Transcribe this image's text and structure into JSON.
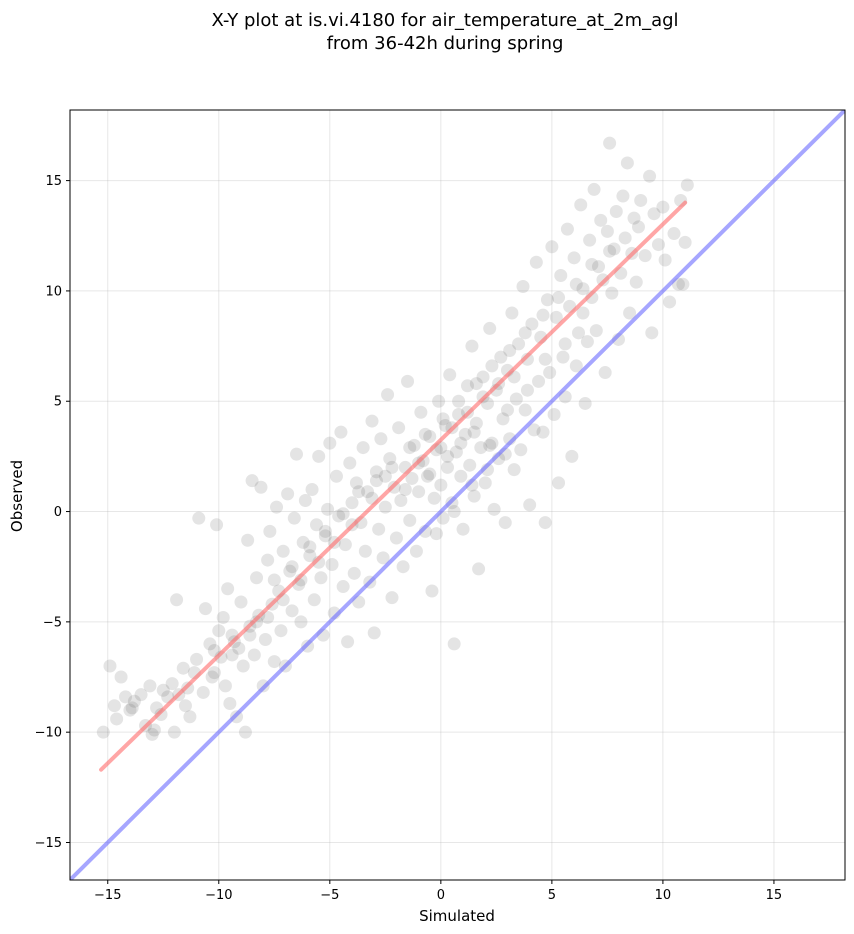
{
  "chart_data": {
    "type": "scatter",
    "title_lines": [
      "X-Y plot at is.vi.4180 for air_temperature_at_2m_agl",
      "from 36-42h during spring"
    ],
    "xlabel": "Simulated",
    "ylabel": "Observed",
    "xlim": [
      -16.7,
      18.2
    ],
    "ylim": [
      -16.7,
      18.2
    ],
    "xticks": [
      -15,
      -10,
      -5,
      0,
      5,
      10,
      15
    ],
    "yticks": [
      -15,
      -10,
      -5,
      0,
      5,
      10,
      15
    ],
    "xtick_labels": [
      "−15",
      "−10",
      "−5",
      "0",
      "5",
      "10",
      "15"
    ],
    "ytick_labels": [
      "−15",
      "−10",
      "−5",
      "0",
      "5",
      "10",
      "15"
    ],
    "grid": true,
    "point_color": "#555555",
    "fit_line": {
      "x": [
        -15.3,
        11.0
      ],
      "y": [
        -11.7,
        14.0
      ],
      "color": "#ff6b6b"
    },
    "identity_line": {
      "color": "#6b6bff"
    },
    "points": [
      [
        -15.2,
        -10.0
      ],
      [
        -14.9,
        -7.0
      ],
      [
        -14.7,
        -8.8
      ],
      [
        -14.6,
        -9.4
      ],
      [
        -14.4,
        -7.5
      ],
      [
        -14.2,
        -8.4
      ],
      [
        -14.0,
        -9.0
      ],
      [
        -13.8,
        -8.6
      ],
      [
        -13.5,
        -8.3
      ],
      [
        -13.3,
        -9.7
      ],
      [
        -13.1,
        -7.9
      ],
      [
        -13.0,
        -10.1
      ],
      [
        -12.8,
        -8.9
      ],
      [
        -12.6,
        -9.2
      ],
      [
        -12.5,
        -8.1
      ],
      [
        -12.3,
        -8.4
      ],
      [
        -12.1,
        -7.8
      ],
      [
        -12.0,
        -10.0
      ],
      [
        -11.9,
        -4.0
      ],
      [
        -11.8,
        -8.3
      ],
      [
        -11.6,
        -7.1
      ],
      [
        -11.5,
        -8.8
      ],
      [
        -11.3,
        -9.3
      ],
      [
        -11.1,
        -7.3
      ],
      [
        -11.0,
        -6.7
      ],
      [
        -10.9,
        -0.3
      ],
      [
        -10.7,
        -8.2
      ],
      [
        -10.6,
        -4.4
      ],
      [
        -10.4,
        -6.0
      ],
      [
        -10.3,
        -7.5
      ],
      [
        -10.1,
        -0.6
      ],
      [
        -10.0,
        -5.4
      ],
      [
        -9.9,
        -6.6
      ],
      [
        -9.8,
        -4.8
      ],
      [
        -9.7,
        -7.9
      ],
      [
        -9.6,
        -3.5
      ],
      [
        -9.5,
        -8.7
      ],
      [
        -9.3,
        -5.9
      ],
      [
        -9.2,
        -9.3
      ],
      [
        -9.1,
        -6.2
      ],
      [
        -9.0,
        -4.1
      ],
      [
        -8.9,
        -7.0
      ],
      [
        -8.8,
        -10.0
      ],
      [
        -8.7,
        -1.3
      ],
      [
        -8.6,
        -5.2
      ],
      [
        -8.5,
        1.4
      ],
      [
        -8.4,
        -6.5
      ],
      [
        -8.3,
        -3.0
      ],
      [
        -8.2,
        -4.7
      ],
      [
        -8.1,
        1.1
      ],
      [
        -8.0,
        -7.9
      ],
      [
        -7.9,
        -5.8
      ],
      [
        -7.8,
        -2.2
      ],
      [
        -7.7,
        -0.9
      ],
      [
        -7.6,
        -4.2
      ],
      [
        -7.5,
        -6.8
      ],
      [
        -7.4,
        0.2
      ],
      [
        -7.3,
        -3.6
      ],
      [
        -7.2,
        -5.4
      ],
      [
        -7.1,
        -1.8
      ],
      [
        -7.0,
        -7.0
      ],
      [
        -6.9,
        0.8
      ],
      [
        -6.8,
        -2.7
      ],
      [
        -6.7,
        -4.5
      ],
      [
        -6.6,
        -0.3
      ],
      [
        -6.5,
        2.6
      ],
      [
        -6.4,
        -3.3
      ],
      [
        -6.3,
        -5.0
      ],
      [
        -6.2,
        -1.4
      ],
      [
        -6.1,
        0.5
      ],
      [
        -6.0,
        -6.1
      ],
      [
        -5.9,
        -2.0
      ],
      [
        -5.8,
        1.0
      ],
      [
        -5.7,
        -4.0
      ],
      [
        -5.6,
        -0.6
      ],
      [
        -5.5,
        2.5
      ],
      [
        -5.4,
        -3.0
      ],
      [
        -5.3,
        -5.6
      ],
      [
        -5.2,
        -1.1
      ],
      [
        -5.1,
        0.1
      ],
      [
        -5.0,
        3.1
      ],
      [
        -4.9,
        -2.4
      ],
      [
        -4.8,
        -4.6
      ],
      [
        -4.7,
        1.6
      ],
      [
        -4.6,
        -0.2
      ],
      [
        -4.5,
        3.6
      ],
      [
        -4.4,
        -3.4
      ],
      [
        -4.3,
        -1.5
      ],
      [
        -4.2,
        -5.9
      ],
      [
        -4.1,
        2.2
      ],
      [
        -4.0,
        0.4
      ],
      [
        -3.9,
        -2.8
      ],
      [
        -3.8,
        1.3
      ],
      [
        -3.7,
        -4.1
      ],
      [
        -3.6,
        -0.5
      ],
      [
        -3.5,
        2.9
      ],
      [
        -3.4,
        -1.8
      ],
      [
        -3.3,
        0.9
      ],
      [
        -3.2,
        -3.2
      ],
      [
        -3.1,
        4.1
      ],
      [
        -3.0,
        -5.5
      ],
      [
        -2.9,
        1.8
      ],
      [
        -2.8,
        -0.8
      ],
      [
        -2.7,
        3.3
      ],
      [
        -2.6,
        -2.1
      ],
      [
        -2.5,
        0.2
      ],
      [
        -2.4,
        5.3
      ],
      [
        -2.3,
        2.4
      ],
      [
        -2.2,
        -3.9
      ],
      [
        -2.1,
        1.1
      ],
      [
        -2.0,
        -1.2
      ],
      [
        -1.9,
        3.8
      ],
      [
        -1.8,
        0.5
      ],
      [
        -1.7,
        -2.5
      ],
      [
        -1.6,
        2.0
      ],
      [
        -1.5,
        5.9
      ],
      [
        -1.4,
        -0.4
      ],
      [
        -1.3,
        1.5
      ],
      [
        -1.2,
        3.0
      ],
      [
        -1.1,
        -1.8
      ],
      [
        -1.0,
        0.9
      ],
      [
        -0.9,
        4.5
      ],
      [
        -0.8,
        2.3
      ],
      [
        -0.7,
        -0.9
      ],
      [
        -0.6,
        1.6
      ],
      [
        -0.5,
        3.4
      ],
      [
        -0.4,
        -3.6
      ],
      [
        -0.3,
        0.6
      ],
      [
        -0.2,
        2.8
      ],
      [
        -0.1,
        5.0
      ],
      [
        0.0,
        1.2
      ],
      [
        0.1,
        -0.3
      ],
      [
        0.2,
        3.9
      ],
      [
        0.3,
        2.0
      ],
      [
        0.4,
        6.2
      ],
      [
        0.5,
        0.4
      ],
      [
        0.6,
        -6.0
      ],
      [
        0.7,
        2.7
      ],
      [
        0.8,
        4.4
      ],
      [
        0.9,
        1.6
      ],
      [
        1.0,
        -0.8
      ],
      [
        1.1,
        3.5
      ],
      [
        1.2,
        5.7
      ],
      [
        1.3,
        2.1
      ],
      [
        1.4,
        7.5
      ],
      [
        1.5,
        0.7
      ],
      [
        1.6,
        4.0
      ],
      [
        1.7,
        -2.6
      ],
      [
        1.8,
        2.9
      ],
      [
        1.9,
        6.1
      ],
      [
        2.0,
        1.3
      ],
      [
        2.1,
        4.9
      ],
      [
        2.2,
        8.3
      ],
      [
        2.3,
        3.1
      ],
      [
        2.4,
        0.1
      ],
      [
        2.5,
        5.5
      ],
      [
        2.6,
        2.4
      ],
      [
        2.7,
        7.0
      ],
      [
        2.8,
        4.2
      ],
      [
        2.9,
        -0.5
      ],
      [
        3.0,
        6.4
      ],
      [
        3.1,
        3.3
      ],
      [
        3.2,
        9.0
      ],
      [
        3.3,
        1.9
      ],
      [
        3.4,
        5.1
      ],
      [
        3.5,
        7.6
      ],
      [
        3.6,
        2.8
      ],
      [
        3.7,
        10.2
      ],
      [
        3.8,
        4.6
      ],
      [
        3.9,
        6.9
      ],
      [
        4.0,
        0.3
      ],
      [
        4.1,
        8.5
      ],
      [
        4.2,
        3.7
      ],
      [
        4.3,
        11.3
      ],
      [
        4.4,
        5.9
      ],
      [
        4.5,
        7.9
      ],
      [
        4.6,
        3.6
      ],
      [
        4.7,
        -0.5
      ],
      [
        4.8,
        9.6
      ],
      [
        4.9,
        6.3
      ],
      [
        5.0,
        12.0
      ],
      [
        5.1,
        4.4
      ],
      [
        5.2,
        8.8
      ],
      [
        5.3,
        1.3
      ],
      [
        5.4,
        10.7
      ],
      [
        5.5,
        7.0
      ],
      [
        5.6,
        5.2
      ],
      [
        5.7,
        12.8
      ],
      [
        5.8,
        9.3
      ],
      [
        5.9,
        2.5
      ],
      [
        6.0,
        11.5
      ],
      [
        6.1,
        6.6
      ],
      [
        6.2,
        8.1
      ],
      [
        6.3,
        13.9
      ],
      [
        6.4,
        10.1
      ],
      [
        6.5,
        4.9
      ],
      [
        6.6,
        7.7
      ],
      [
        6.7,
        12.3
      ],
      [
        6.8,
        9.7
      ],
      [
        6.9,
        14.6
      ],
      [
        7.0,
        8.2
      ],
      [
        7.1,
        11.1
      ],
      [
        7.2,
        13.2
      ],
      [
        7.3,
        10.5
      ],
      [
        7.4,
        6.3
      ],
      [
        7.5,
        12.7
      ],
      [
        7.6,
        16.7
      ],
      [
        7.7,
        9.9
      ],
      [
        7.8,
        11.9
      ],
      [
        7.9,
        13.6
      ],
      [
        8.0,
        7.8
      ],
      [
        8.1,
        10.8
      ],
      [
        8.2,
        14.3
      ],
      [
        8.3,
        12.4
      ],
      [
        8.4,
        15.8
      ],
      [
        8.5,
        9.0
      ],
      [
        8.6,
        11.7
      ],
      [
        8.7,
        13.3
      ],
      [
        8.8,
        10.4
      ],
      [
        8.9,
        12.9
      ],
      [
        9.0,
        14.1
      ],
      [
        9.2,
        11.6
      ],
      [
        9.4,
        15.2
      ],
      [
        9.5,
        8.1
      ],
      [
        9.6,
        13.5
      ],
      [
        9.8,
        12.1
      ],
      [
        10.0,
        13.8
      ],
      [
        10.1,
        11.4
      ],
      [
        10.3,
        9.5
      ],
      [
        10.5,
        12.6
      ],
      [
        10.7,
        10.3
      ],
      [
        10.8,
        14.1
      ],
      [
        11.0,
        12.2
      ],
      [
        11.1,
        14.8
      ],
      [
        10.9,
        10.3
      ],
      [
        -13.9,
        -8.9
      ],
      [
        -12.9,
        -9.9
      ],
      [
        -11.4,
        -8.0
      ],
      [
        -10.2,
        -6.3
      ],
      [
        -9.4,
        -5.6
      ],
      [
        -8.3,
        -5.0
      ],
      [
        -7.5,
        -3.1
      ],
      [
        -6.7,
        -2.5
      ],
      [
        -5.9,
        -1.6
      ],
      [
        -5.2,
        -0.9
      ],
      [
        -4.4,
        -0.1
      ],
      [
        -3.7,
        0.9
      ],
      [
        -2.9,
        1.4
      ],
      [
        -2.2,
        2.0
      ],
      [
        -1.4,
        2.9
      ],
      [
        -0.7,
        3.5
      ],
      [
        0.1,
        4.2
      ],
      [
        0.8,
        5.0
      ],
      [
        1.6,
        5.8
      ],
      [
        2.3,
        6.6
      ],
      [
        3.1,
        7.3
      ],
      [
        3.8,
        8.1
      ],
      [
        4.6,
        8.9
      ],
      [
        5.3,
        9.7
      ],
      [
        6.1,
        10.3
      ],
      [
        6.8,
        11.2
      ],
      [
        7.6,
        11.8
      ],
      [
        -1.0,
        2.2
      ],
      [
        -0.5,
        1.7
      ],
      [
        0.3,
        2.5
      ],
      [
        0.9,
        3.1
      ],
      [
        1.5,
        3.6
      ],
      [
        -1.6,
        1.0
      ],
      [
        -2.5,
        1.6
      ],
      [
        0.0,
        2.9
      ],
      [
        0.5,
        3.8
      ],
      [
        1.2,
        4.5
      ],
      [
        1.9,
        5.2
      ],
      [
        2.6,
        5.8
      ],
      [
        3.3,
        6.1
      ],
      [
        -3.1,
        0.6
      ],
      [
        -4.0,
        -0.6
      ],
      [
        -4.8,
        -1.4
      ],
      [
        -5.5,
        -2.3
      ],
      [
        -6.3,
        -3.1
      ],
      [
        -7.1,
        -4.0
      ],
      [
        -7.8,
        -4.8
      ],
      [
        -8.6,
        -5.6
      ],
      [
        -9.4,
        -6.5
      ],
      [
        -10.2,
        -7.3
      ],
      [
        2.2,
        3.0
      ],
      [
        3.0,
        4.6
      ],
      [
        3.9,
        5.5
      ],
      [
        4.7,
        6.9
      ],
      [
        5.6,
        7.6
      ],
      [
        6.4,
        9.0
      ],
      [
        -0.2,
        -1.0
      ],
      [
        0.6,
        0.0
      ],
      [
        1.4,
        1.2
      ],
      [
        2.1,
        1.9
      ],
      [
        2.9,
        2.6
      ]
    ]
  }
}
